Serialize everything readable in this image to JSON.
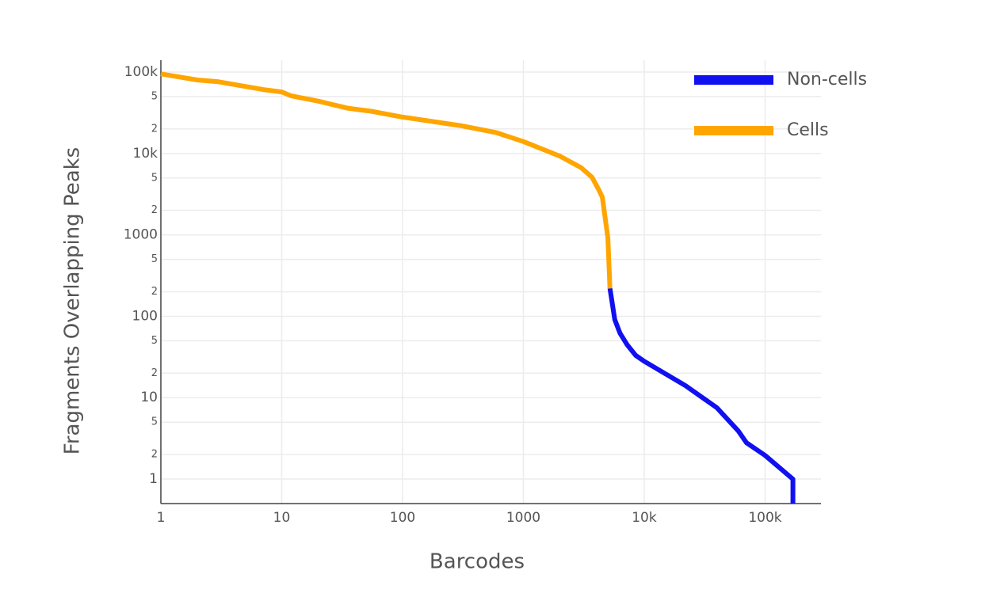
{
  "chart_data": {
    "type": "line",
    "xlabel": "Barcodes",
    "ylabel": "Fragments Overlapping Peaks",
    "xscale": "log",
    "yscale": "log",
    "grid": true,
    "legend": "top-right",
    "xlim": [
      1,
      290000
    ],
    "ylim": [
      0.5,
      140000
    ],
    "xticks": [
      1,
      10,
      100,
      1000,
      {
        "value": 10000,
        "label": "10k"
      },
      {
        "value": 100000,
        "label": "100k"
      }
    ],
    "yticks": [
      1,
      {
        "value": 2,
        "label": "2"
      },
      {
        "value": 5,
        "label": "5"
      },
      10,
      {
        "value": 20,
        "label": "2"
      },
      {
        "value": 50,
        "label": "5"
      },
      100,
      {
        "value": 200,
        "label": "2"
      },
      {
        "value": 500,
        "label": "5"
      },
      1000,
      {
        "value": 2000,
        "label": "2"
      },
      {
        "value": 5000,
        "label": "5"
      },
      {
        "value": 10000,
        "label": "10k"
      },
      {
        "value": 20000,
        "label": "2"
      },
      {
        "value": 50000,
        "label": "5"
      },
      {
        "value": 100000,
        "label": "100k"
      }
    ],
    "series": [
      {
        "name": "Non-cells",
        "color": "#1010f0",
        "x": [
          5200,
          5700,
          6300,
          7200,
          8500,
          10000,
          22000,
          40000,
          60000,
          70000,
          100000,
          170000,
          170000
        ],
        "values": [
          220,
          91,
          62,
          45,
          33,
          28,
          14,
          7.5,
          3.9,
          2.8,
          1.95,
          1,
          0.5
        ]
      },
      {
        "name": "Cells",
        "color": "#ffa500",
        "x": [
          1,
          2,
          3,
          7,
          10,
          12,
          20,
          35,
          55,
          100,
          300,
          600,
          1000,
          2000,
          3000,
          3700,
          4200,
          4500,
          5000,
          5200
        ],
        "values": [
          95000,
          80000,
          76000,
          61000,
          57000,
          51000,
          44000,
          36000,
          33000,
          28000,
          22000,
          18000,
          14000,
          9300,
          6700,
          5100,
          3600,
          2900,
          920,
          220
        ]
      }
    ]
  }
}
